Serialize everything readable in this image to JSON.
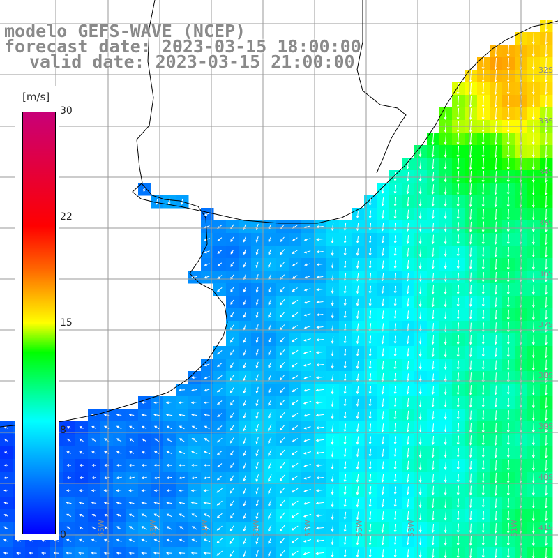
{
  "titles": {
    "line1": "modelo GEFS-WAVE (NCEP)",
    "line2": "forecast date: 2023-03-15 18:00:00",
    "line3": "valid date: 2023-03-15 21:00:00"
  },
  "legend": {
    "unit": "[m/s]",
    "ticks": [
      "30",
      "22",
      "15",
      "8",
      "0"
    ],
    "range": [
      0,
      30
    ],
    "colors": [
      "#0000ff",
      "#00ffff",
      "#00ff00",
      "#ffff00",
      "#ff6400",
      "#ff0000",
      "#c80078"
    ]
  },
  "map": {
    "variable": "wind speed",
    "lat_labels": [
      "32S",
      "33S",
      "34S",
      "35S",
      "36S",
      "37S",
      "38S",
      "39S",
      "40S",
      "41S"
    ],
    "lon_labels": [
      "65W",
      "63W",
      "61W",
      "59W",
      "57W",
      "55W",
      "53W",
      "51W"
    ],
    "grid": true,
    "land_color": "#ffffff",
    "coast_color": "#000000",
    "arrow_color": "#ffffff"
  }
}
